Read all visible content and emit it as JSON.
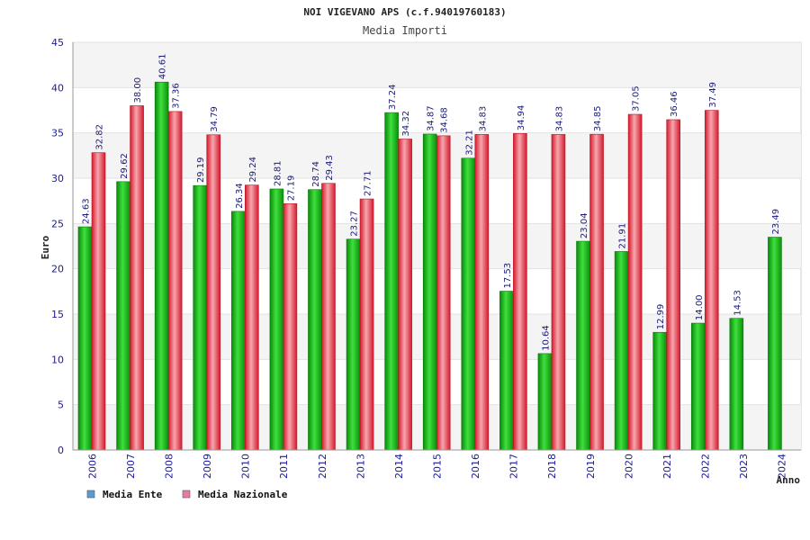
{
  "chart_data": {
    "type": "bar",
    "title": "NOI VIGEVANO APS (c.f.94019760183)",
    "subtitle": "Media Importi",
    "xlabel": "Anno",
    "ylabel": "Euro",
    "ylim": [
      0,
      45
    ],
    "yticks": [
      0,
      5,
      10,
      15,
      20,
      25,
      30,
      35,
      40,
      45
    ],
    "grid": true,
    "legend_position": "bottom-left",
    "categories": [
      "2006",
      "2007",
      "2008",
      "2009",
      "2010",
      "2011",
      "2012",
      "2013",
      "2014",
      "2015",
      "2016",
      "2017",
      "2018",
      "2019",
      "2020",
      "2021",
      "2022",
      "2023",
      "2024"
    ],
    "series": [
      {
        "name": "Media Ente",
        "legend_color": "#5b9bd5",
        "bar_color": "#1fb51f",
        "values": [
          24.63,
          29.62,
          40.61,
          29.19,
          26.34,
          28.81,
          28.74,
          23.27,
          37.24,
          34.87,
          32.21,
          17.53,
          10.64,
          23.04,
          21.91,
          12.99,
          14.0,
          14.53,
          23.49
        ],
        "labels": [
          "24.63",
          "29.62",
          "40.61",
          "29.19",
          "26.34",
          "28.81",
          "28.74",
          "23.27",
          "37.24",
          "34.87",
          "32.21",
          "17.53",
          "10.64",
          "23.04",
          "21.91",
          "12.99",
          "14.00",
          "14.53",
          "23.49"
        ]
      },
      {
        "name": "Media Nazionale",
        "legend_color": "#e87aa8",
        "bar_color": "#e83a4a",
        "values": [
          32.82,
          38.0,
          37.36,
          34.79,
          29.24,
          27.19,
          29.43,
          27.71,
          34.32,
          34.68,
          34.83,
          34.94,
          34.83,
          34.85,
          37.05,
          36.46,
          37.49,
          null,
          null
        ],
        "labels": [
          "32.82",
          "38.00",
          "37.36",
          "34.79",
          "29.24",
          "27.19",
          "29.43",
          "27.71",
          "34.32",
          "34.68",
          "34.83",
          "34.94",
          "34.83",
          "34.85",
          "37.05",
          "36.46",
          "37.49",
          null,
          null
        ]
      }
    ]
  }
}
